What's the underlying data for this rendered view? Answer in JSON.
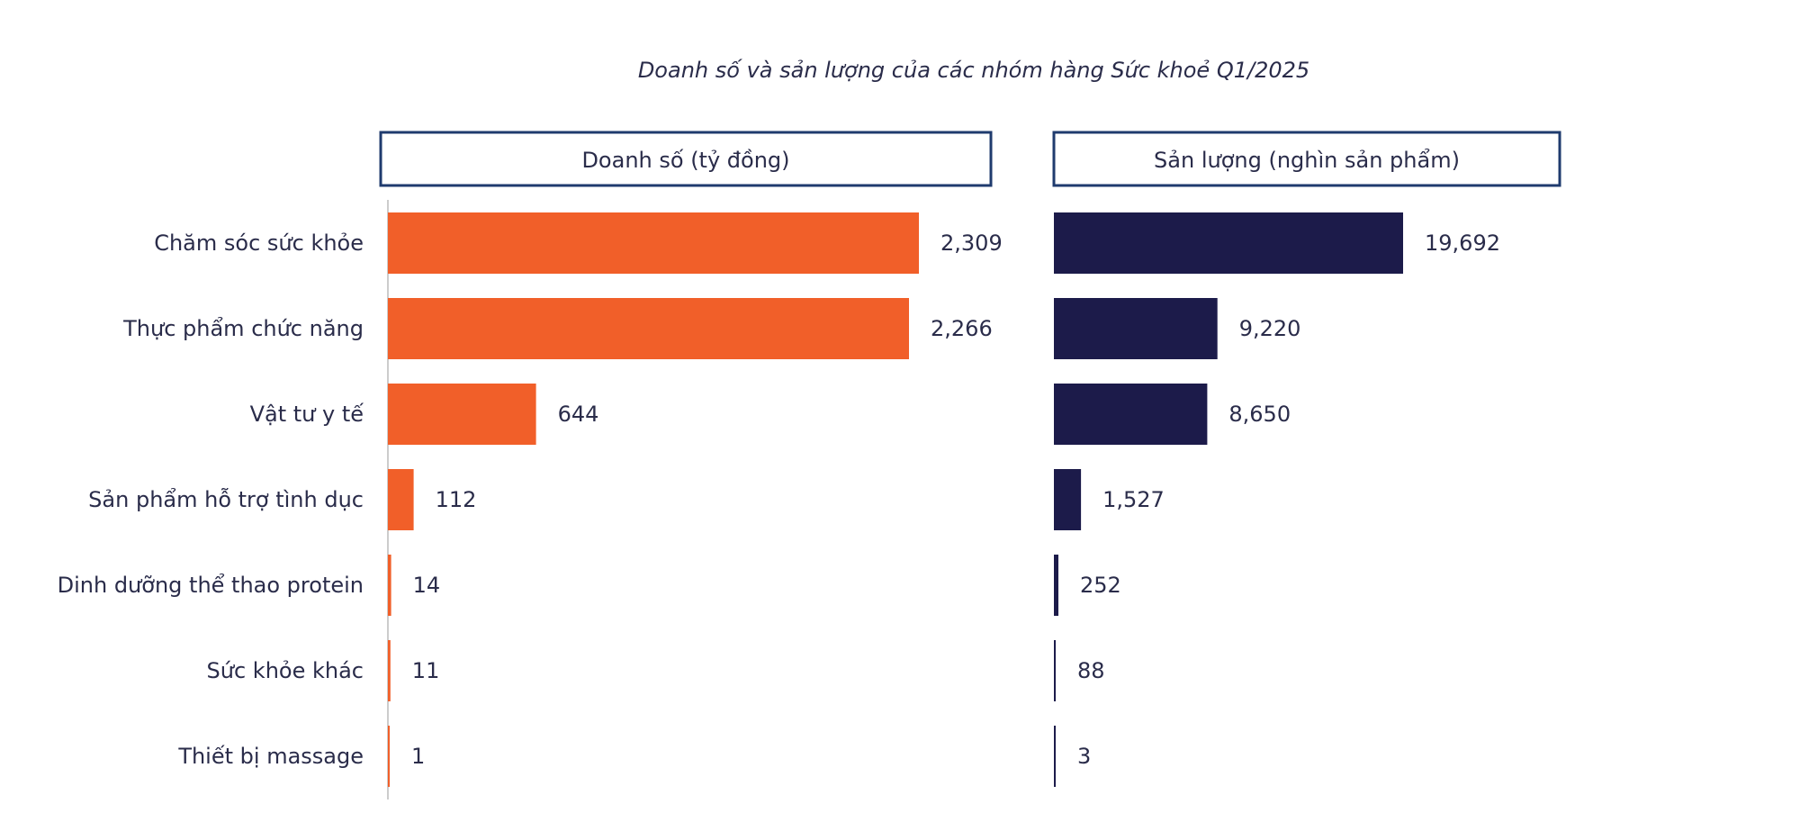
{
  "colors": {
    "left_bar": "#f15f29",
    "right_bar": "#1c1b4a",
    "header_border": "#1f3b6e",
    "axis": "#cccccc",
    "text": "#2a2c4a"
  },
  "chart_data": {
    "type": "bar",
    "orientation": "horizontal",
    "title": "Doanh số và sản lượng của các nhóm hàng Sức khoẻ Q1/2025",
    "categories": [
      "Chăm sóc sức khỏe",
      "Thực phẩm chức năng",
      "Vật tư y tế",
      "Sản phẩm hỗ trợ tình dục",
      "Dinh dưỡng thể thao protein",
      "Sức khỏe khác",
      "Thiết bị massage"
    ],
    "series": [
      {
        "name": "Doanh số (tỷ đồng)",
        "values": [
          2309,
          2266,
          644,
          112,
          14,
          11,
          1
        ],
        "labels": [
          "2,309",
          "2,266",
          "644",
          "112",
          "14",
          "11",
          "1"
        ]
      },
      {
        "name": "Sản lượng (nghìn sản phẩm)",
        "values": [
          19692,
          9220,
          8650,
          1527,
          252,
          88,
          3
        ],
        "labels": [
          "19,692",
          "9,220",
          "8,650",
          "1,527",
          "252",
          "88",
          "3"
        ]
      }
    ],
    "grid": false,
    "legend": "panel headers"
  }
}
